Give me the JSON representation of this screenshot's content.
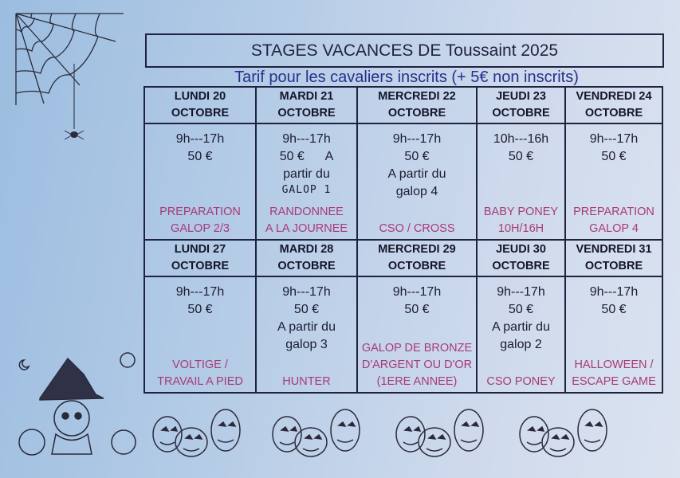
{
  "title": "STAGES VACANCES DE Toussaint 2025",
  "subtitle": "Tarif pour les cavaliers inscrits (+ 5€ non inscrits)",
  "accent_color": "#a83a78",
  "week1": [
    {
      "day": "LUNDI 20",
      "month": "OCTOBRE",
      "hours": "9h---17h",
      "price": "50 €",
      "level": "",
      "activity": [
        "PREPARATION",
        "GALOP 2/3"
      ]
    },
    {
      "day": "MARDI 21",
      "month": "OCTOBRE",
      "hours": "9h---17h",
      "price": "50 €      A",
      "level": "partir du",
      "handwritten": "GALOP 1",
      "activity": [
        "RANDONNEE",
        "A LA JOURNEE"
      ]
    },
    {
      "day": "MERCREDI 22",
      "month": "OCTOBRE",
      "hours": "9h---17h",
      "price": "50 €",
      "level": "A partir du",
      "level2": "galop 4",
      "activity": [
        "CSO / CROSS",
        ""
      ]
    },
    {
      "day": "JEUDI 23",
      "month": "OCTOBRE",
      "hours": "10h---16h",
      "price": "50 €",
      "level": "",
      "activity": [
        "BABY PONEY",
        "10H/16H"
      ]
    },
    {
      "day": "VENDREDI 24",
      "month": "OCTOBRE",
      "hours": "9h---17h",
      "price": "50 €",
      "level": "",
      "activity": [
        "PREPARATION",
        "GALOP 4"
      ]
    }
  ],
  "week2": [
    {
      "day": "LUNDI 27",
      "month": "OCTOBRE",
      "hours": "9h---17h",
      "price": "50 €",
      "level": "",
      "activity": [
        "VOLTIGE /",
        "TRAVAIL A PIED"
      ]
    },
    {
      "day": "MARDI 28",
      "month": "OCTOBRE",
      "hours": "9h---17h",
      "price": "50 €",
      "level": "A partir du",
      "level2": "galop 3",
      "activity": [
        "HUNTER",
        ""
      ]
    },
    {
      "day": "MERCREDI  29",
      "month": "OCTOBRE",
      "hours": "9h---17h",
      "price": "50 €",
      "level": "",
      "activity": [
        "GALOP DE BRONZE",
        "D'ARGENT OU D'OR",
        "(1ERE ANNEE)"
      ]
    },
    {
      "day": "JEUDI 30",
      "month": "OCTOBRE",
      "hours": "9h---17h",
      "price": "50 €",
      "level": "A partir du",
      "level2": "galop 2",
      "activity": [
        "CSO PONEY",
        ""
      ]
    },
    {
      "day": "VENDREDI 31",
      "month": "OCTOBRE",
      "hours": "9h---17h",
      "price": "50 €",
      "level": "",
      "activity": [
        "HALLOWEEN /",
        "ESCAPE GAME"
      ]
    }
  ],
  "decorations": [
    "spider-web-icon",
    "spider-icon",
    "unicorn-witch-icon",
    "pumpkin-icon"
  ]
}
